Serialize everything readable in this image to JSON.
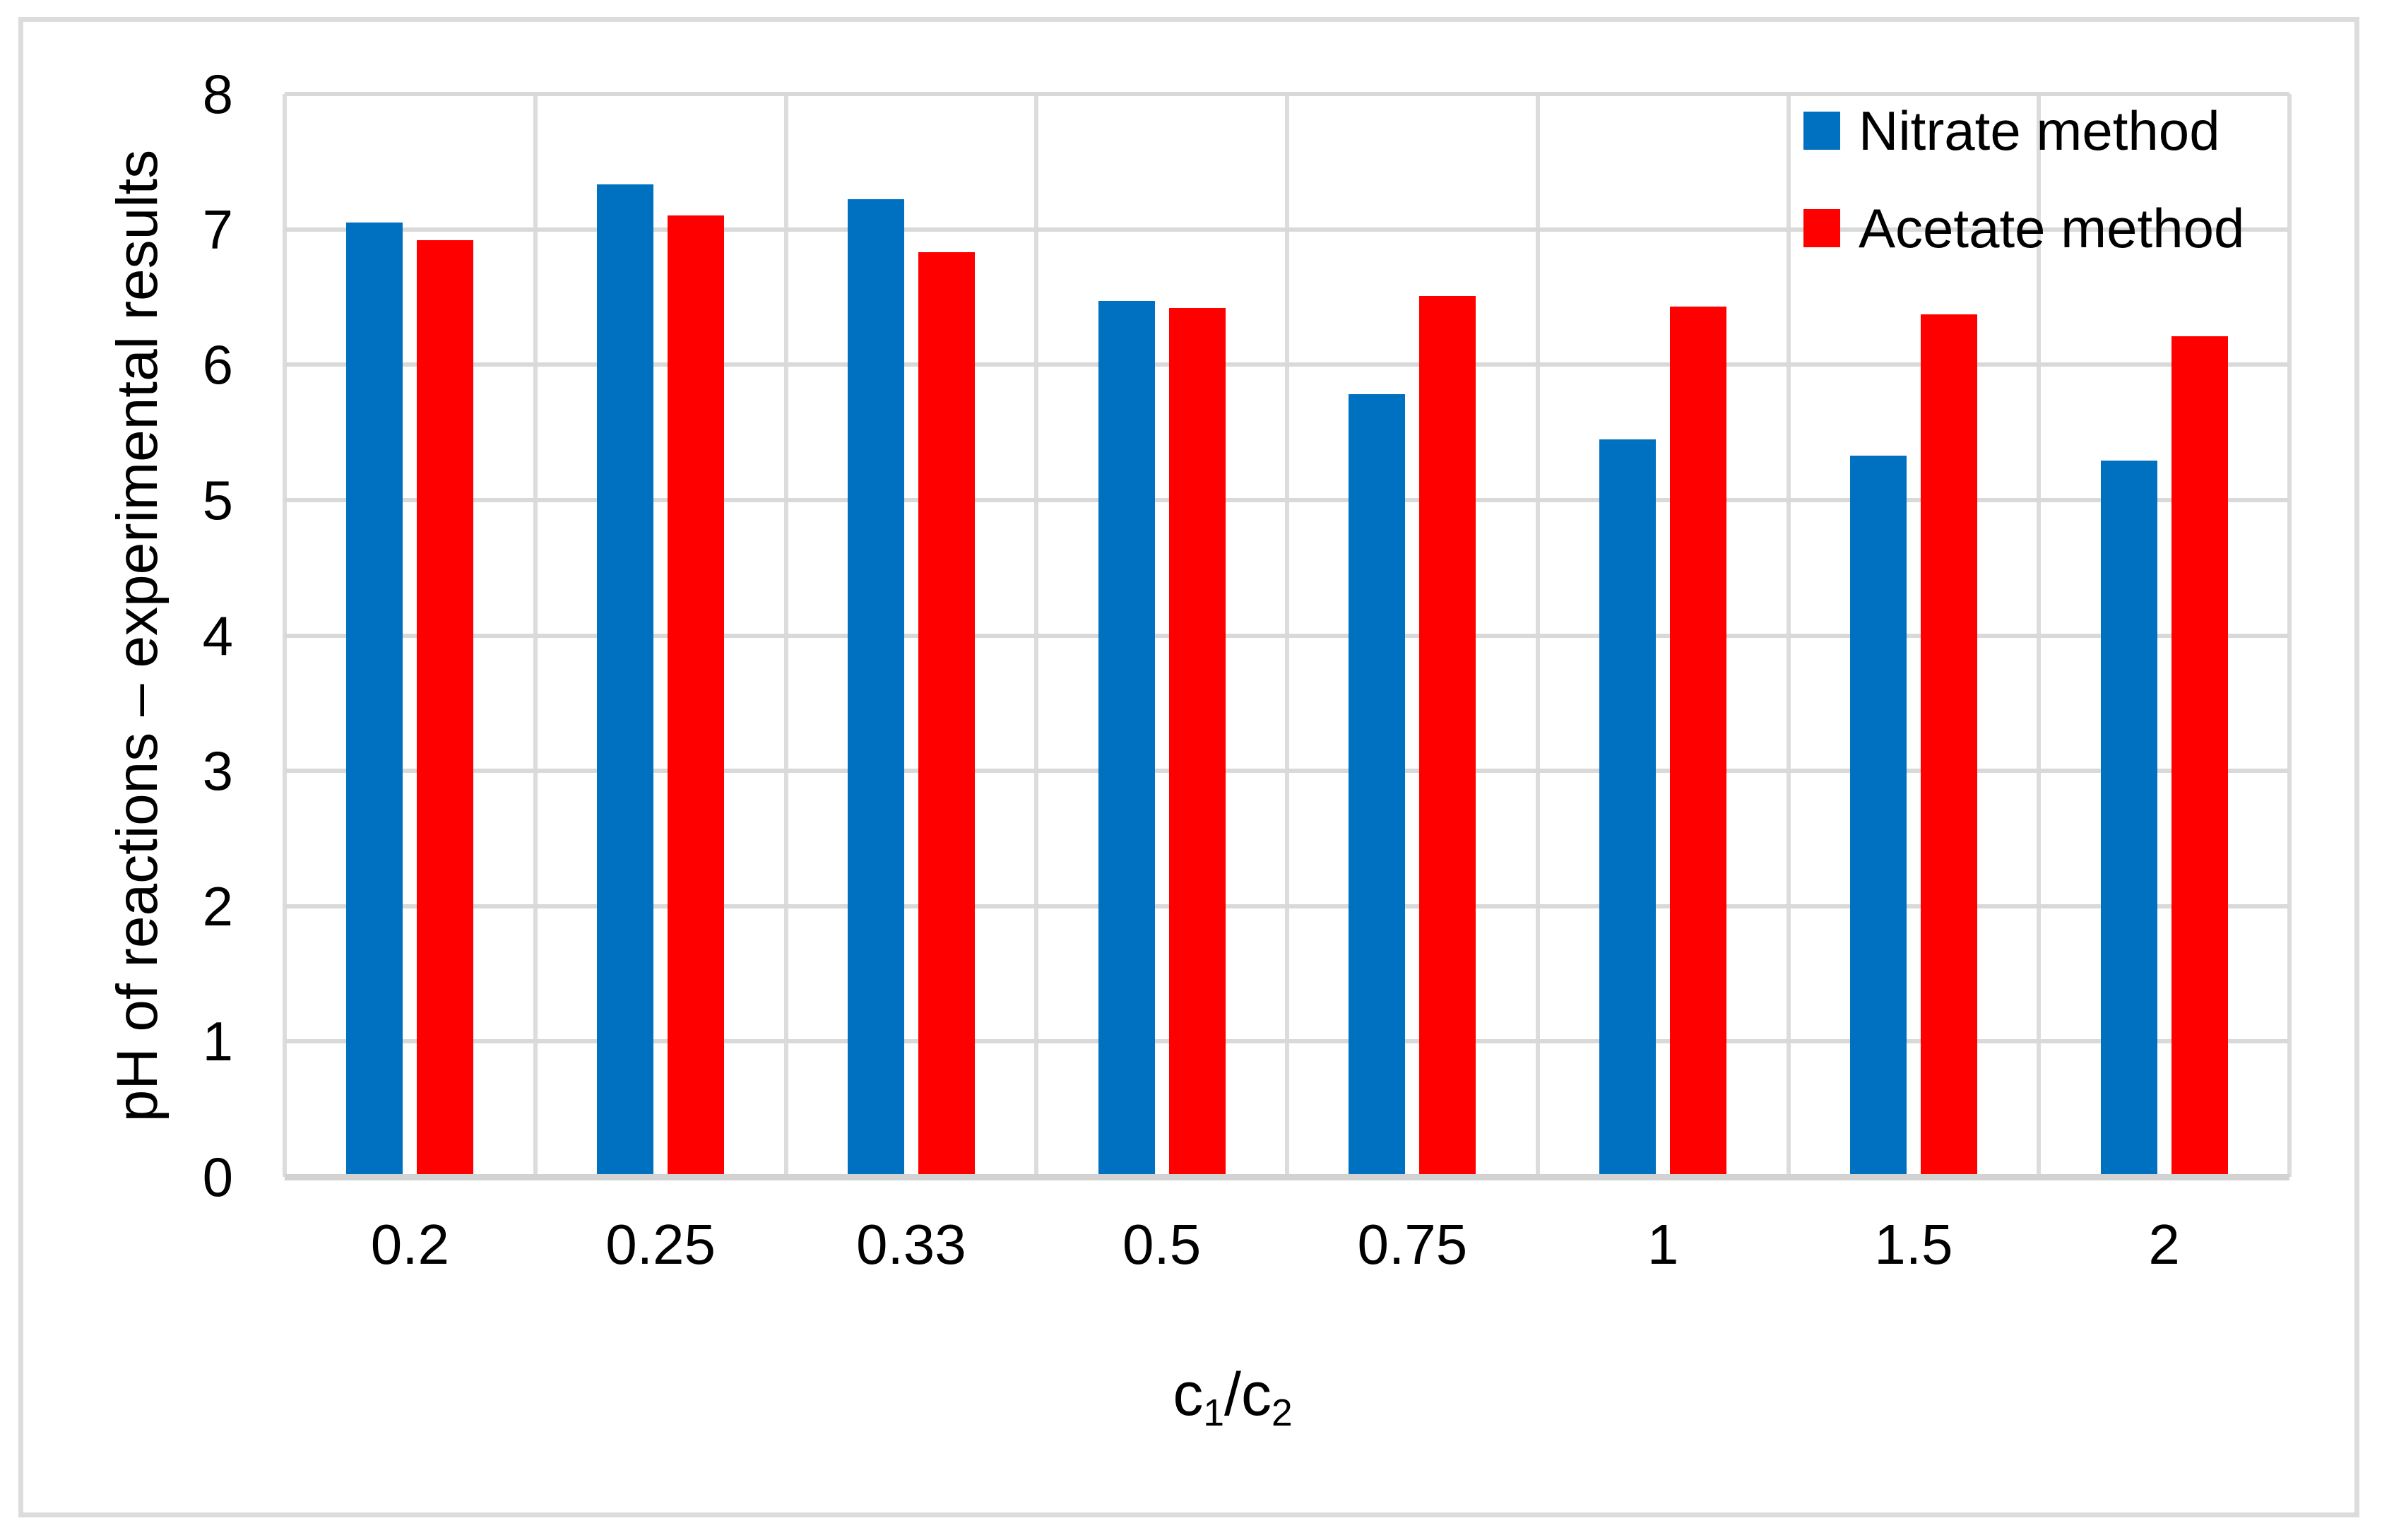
{
  "chart_data": {
    "type": "bar",
    "title": "",
    "categories": [
      "0.2",
      "0.25",
      "0.33",
      "0.5",
      "0.75",
      "1",
      "1.5",
      "2"
    ],
    "series": [
      {
        "name": "Nitrate method",
        "color": "#0070C0",
        "values": [
          7.05,
          7.33,
          7.22,
          6.47,
          5.78,
          5.45,
          5.33,
          5.29
        ]
      },
      {
        "name": "Acetate method",
        "color": "#FF0000",
        "values": [
          6.92,
          7.1,
          6.83,
          6.42,
          6.51,
          6.43,
          6.37,
          6.21
        ]
      }
    ],
    "ylabel": "pH of reactions – experimental results",
    "xlabel_parts": {
      "base1": "c",
      "sub1": "1",
      "base2": "/c",
      "sub2": "2"
    },
    "ylim": [
      0,
      8
    ],
    "ytick_values": [
      0,
      1,
      2,
      3,
      4,
      5,
      6,
      7,
      8
    ],
    "grid": true,
    "legend_position": "top-right-inside"
  },
  "colors": {
    "grid": "#D9D9D9",
    "grid_vertical": "#DCDCDC",
    "axis": "#D2D2D2",
    "figure_border": "#DCDCDC",
    "background": "#FFFFFF",
    "text": "#000000"
  }
}
